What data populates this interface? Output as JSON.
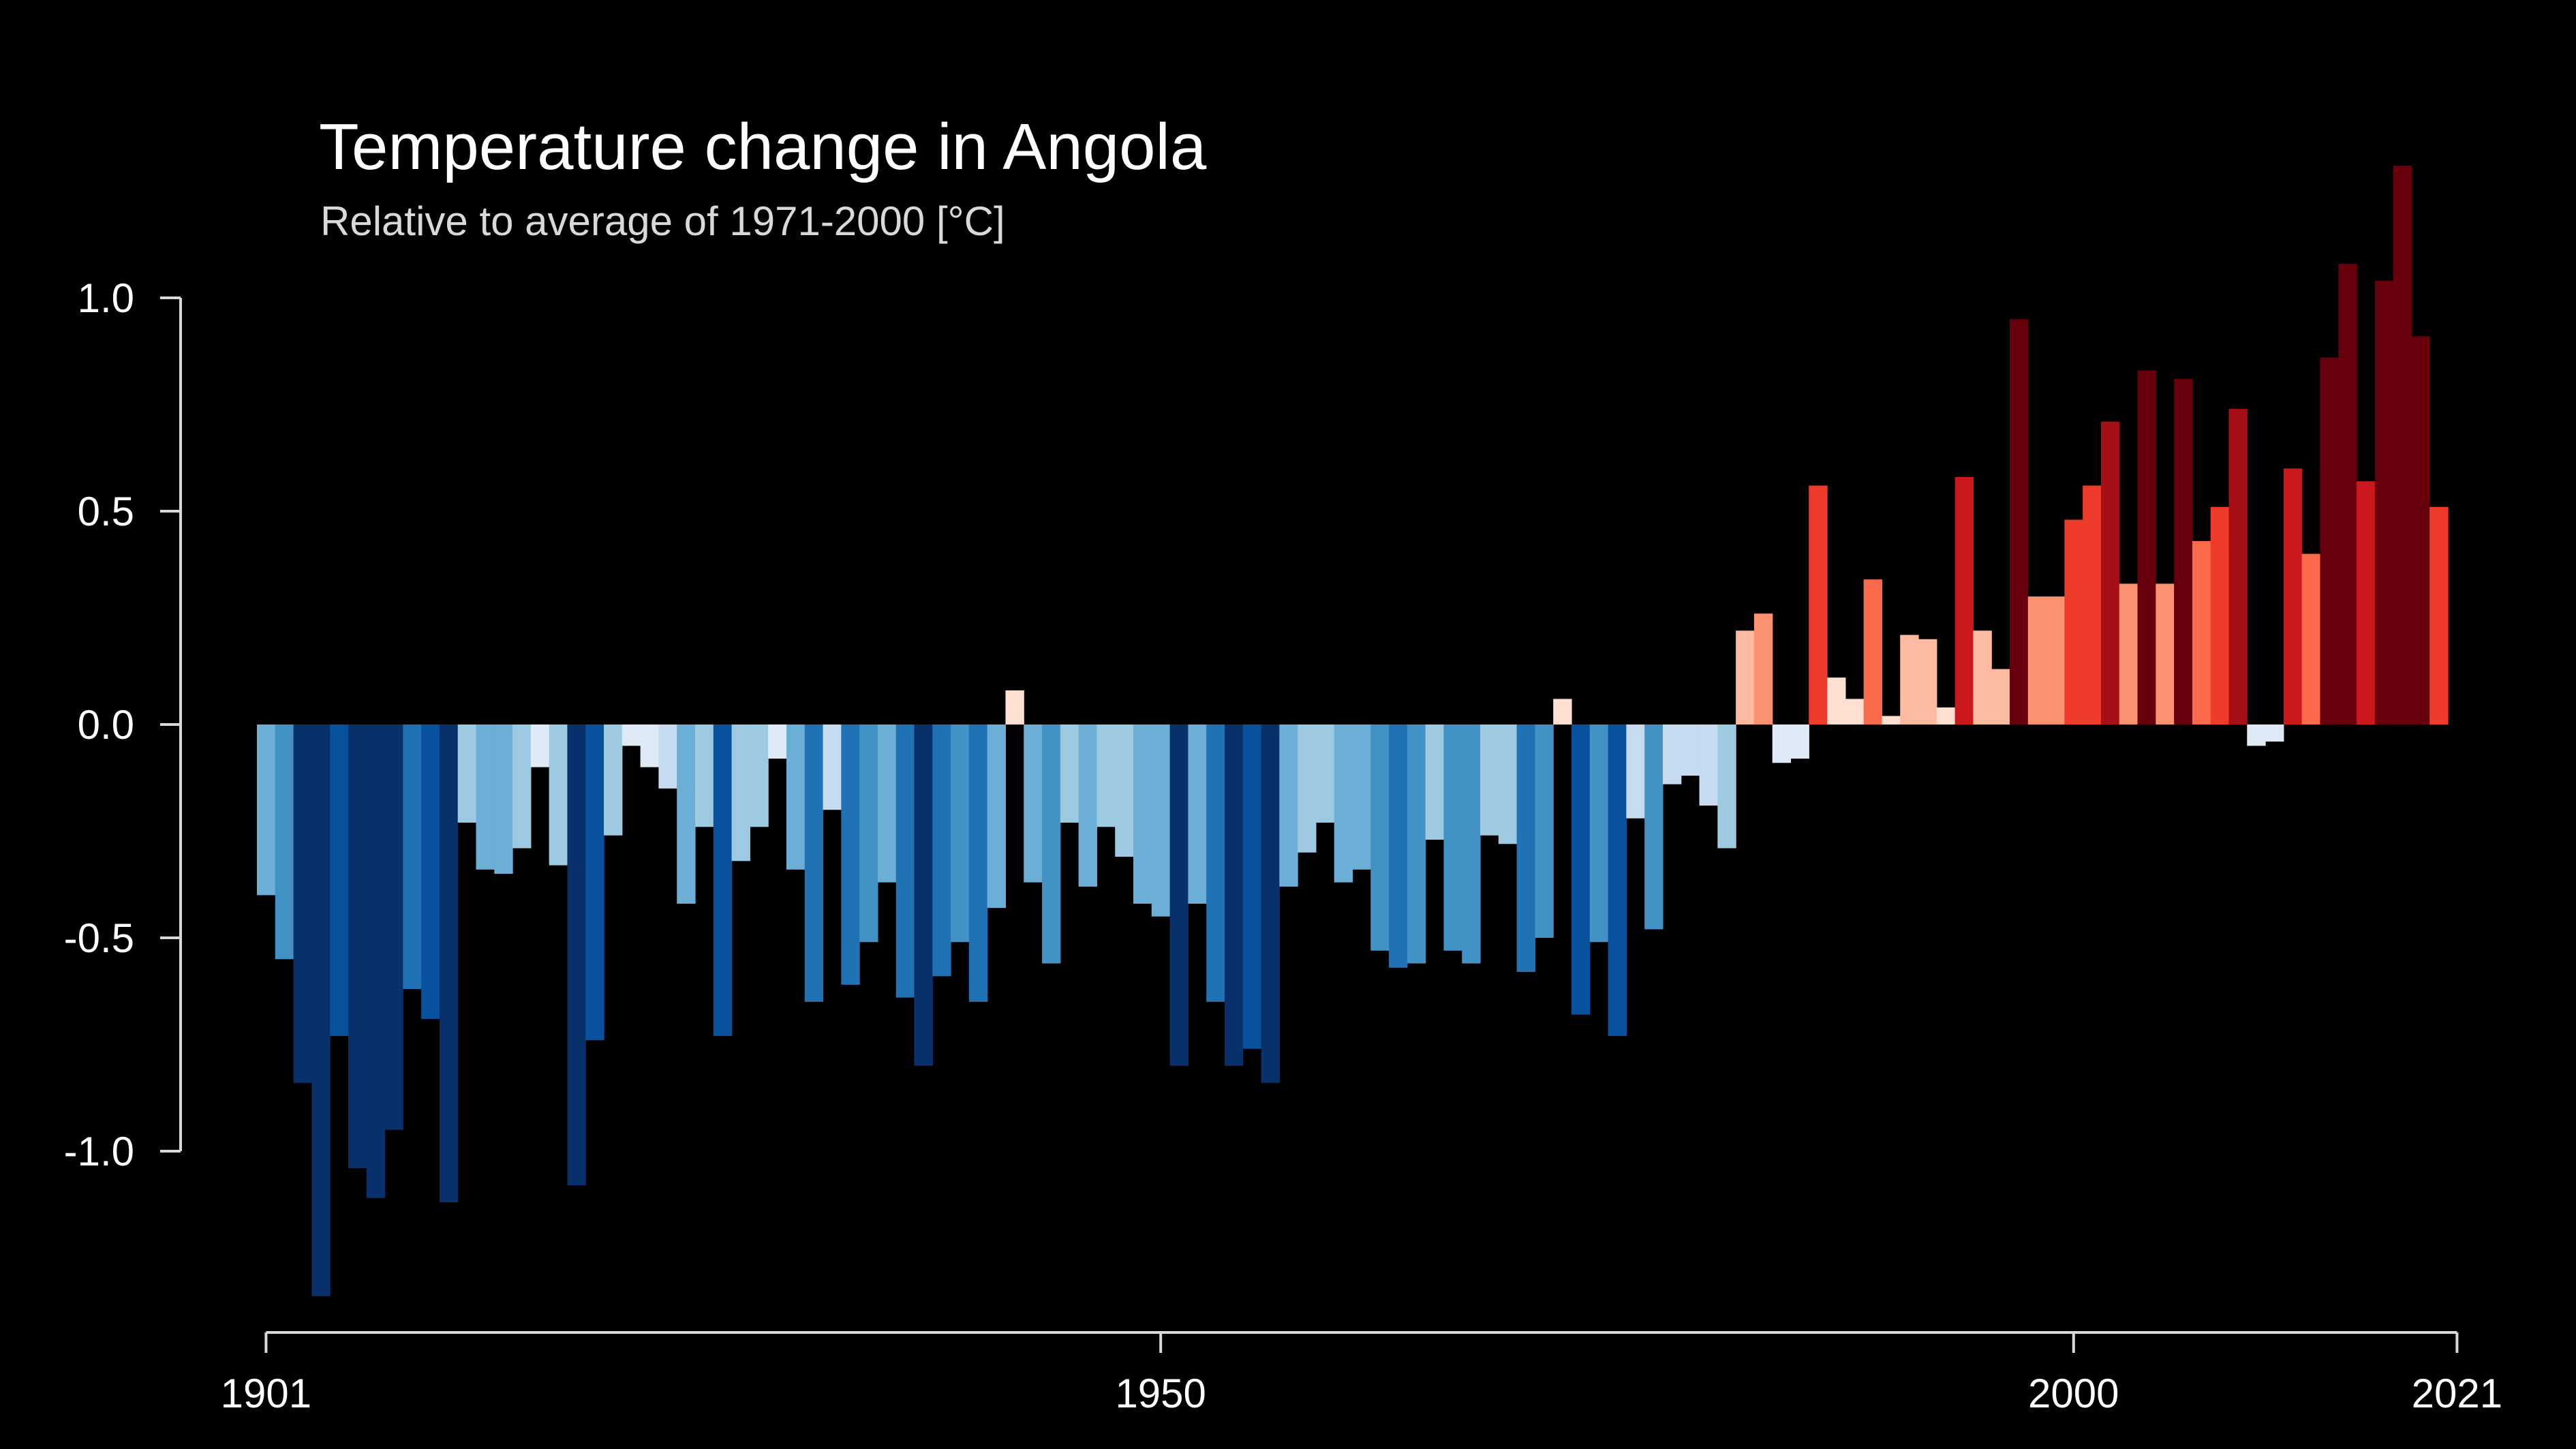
{
  "chart_data": {
    "type": "bar",
    "title": "Temperature change in Angola",
    "subtitle": "Relative to average of 1971-2000  [°C]",
    "xlabel": "",
    "ylabel": "",
    "x_start": 1901,
    "x_end": 2021,
    "ylim": [
      -1.3,
      1.3
    ],
    "y_ticks": [
      "1.0",
      "0.5",
      "0.0",
      "-0.5",
      "-1.0"
    ],
    "y_tick_values": [
      1.0,
      0.5,
      0.0,
      -0.5,
      -1.0
    ],
    "x_ticks": [
      "1901",
      "1950",
      "2000",
      "2021"
    ],
    "x_tick_values": [
      1901,
      1950,
      2000,
      2021
    ],
    "grid": false,
    "legend": "none",
    "color_scale": {
      "min": -0.9,
      "max": 0.9,
      "colors": [
        "#08306b",
        "#08519c",
        "#2171b5",
        "#4292c6",
        "#6baed6",
        "#9ecae1",
        "#c6dbef",
        "#deebf7",
        "#fee0d2",
        "#fcbba1",
        "#fc9272",
        "#fb6a4a",
        "#ef3b2c",
        "#cb181d",
        "#a50f15",
        "#67000d"
      ]
    },
    "values": [
      -0.4,
      -0.55,
      -0.84,
      -1.34,
      -0.73,
      -1.04,
      -1.11,
      -0.95,
      -0.62,
      -0.69,
      -1.12,
      -0.23,
      -0.34,
      -0.35,
      -0.29,
      -0.1,
      -0.33,
      -1.08,
      -0.74,
      -0.26,
      -0.05,
      -0.1,
      -0.15,
      -0.42,
      -0.24,
      -0.73,
      -0.32,
      -0.24,
      -0.08,
      -0.34,
      -0.65,
      -0.2,
      -0.61,
      -0.51,
      -0.37,
      -0.64,
      -0.8,
      -0.59,
      -0.51,
      -0.65,
      -0.43,
      0.08,
      -0.37,
      -0.56,
      -0.23,
      -0.38,
      -0.24,
      -0.31,
      -0.42,
      -0.45,
      -0.8,
      -0.42,
      -0.65,
      -0.8,
      -0.76,
      -0.84,
      -0.38,
      -0.3,
      -0.23,
      -0.37,
      -0.34,
      -0.53,
      -0.57,
      -0.56,
      -0.27,
      -0.53,
      -0.56,
      -0.26,
      -0.28,
      -0.58,
      -0.5,
      0.06,
      -0.68,
      -0.51,
      -0.73,
      -0.22,
      -0.48,
      -0.14,
      -0.12,
      -0.19,
      -0.29,
      0.22,
      0.26,
      -0.09,
      -0.08,
      0.56,
      0.11,
      0.06,
      0.34,
      0.02,
      0.21,
      0.2,
      0.04,
      0.58,
      0.22,
      0.13,
      0.95,
      0.3,
      0.3,
      0.48,
      0.56,
      0.71,
      0.33,
      0.83,
      0.33,
      0.81,
      0.43,
      0.51,
      0.74,
      -0.05,
      -0.04,
      0.6,
      0.4,
      0.86,
      1.08,
      0.57,
      1.04,
      1.31,
      0.91,
      0.51
    ]
  }
}
